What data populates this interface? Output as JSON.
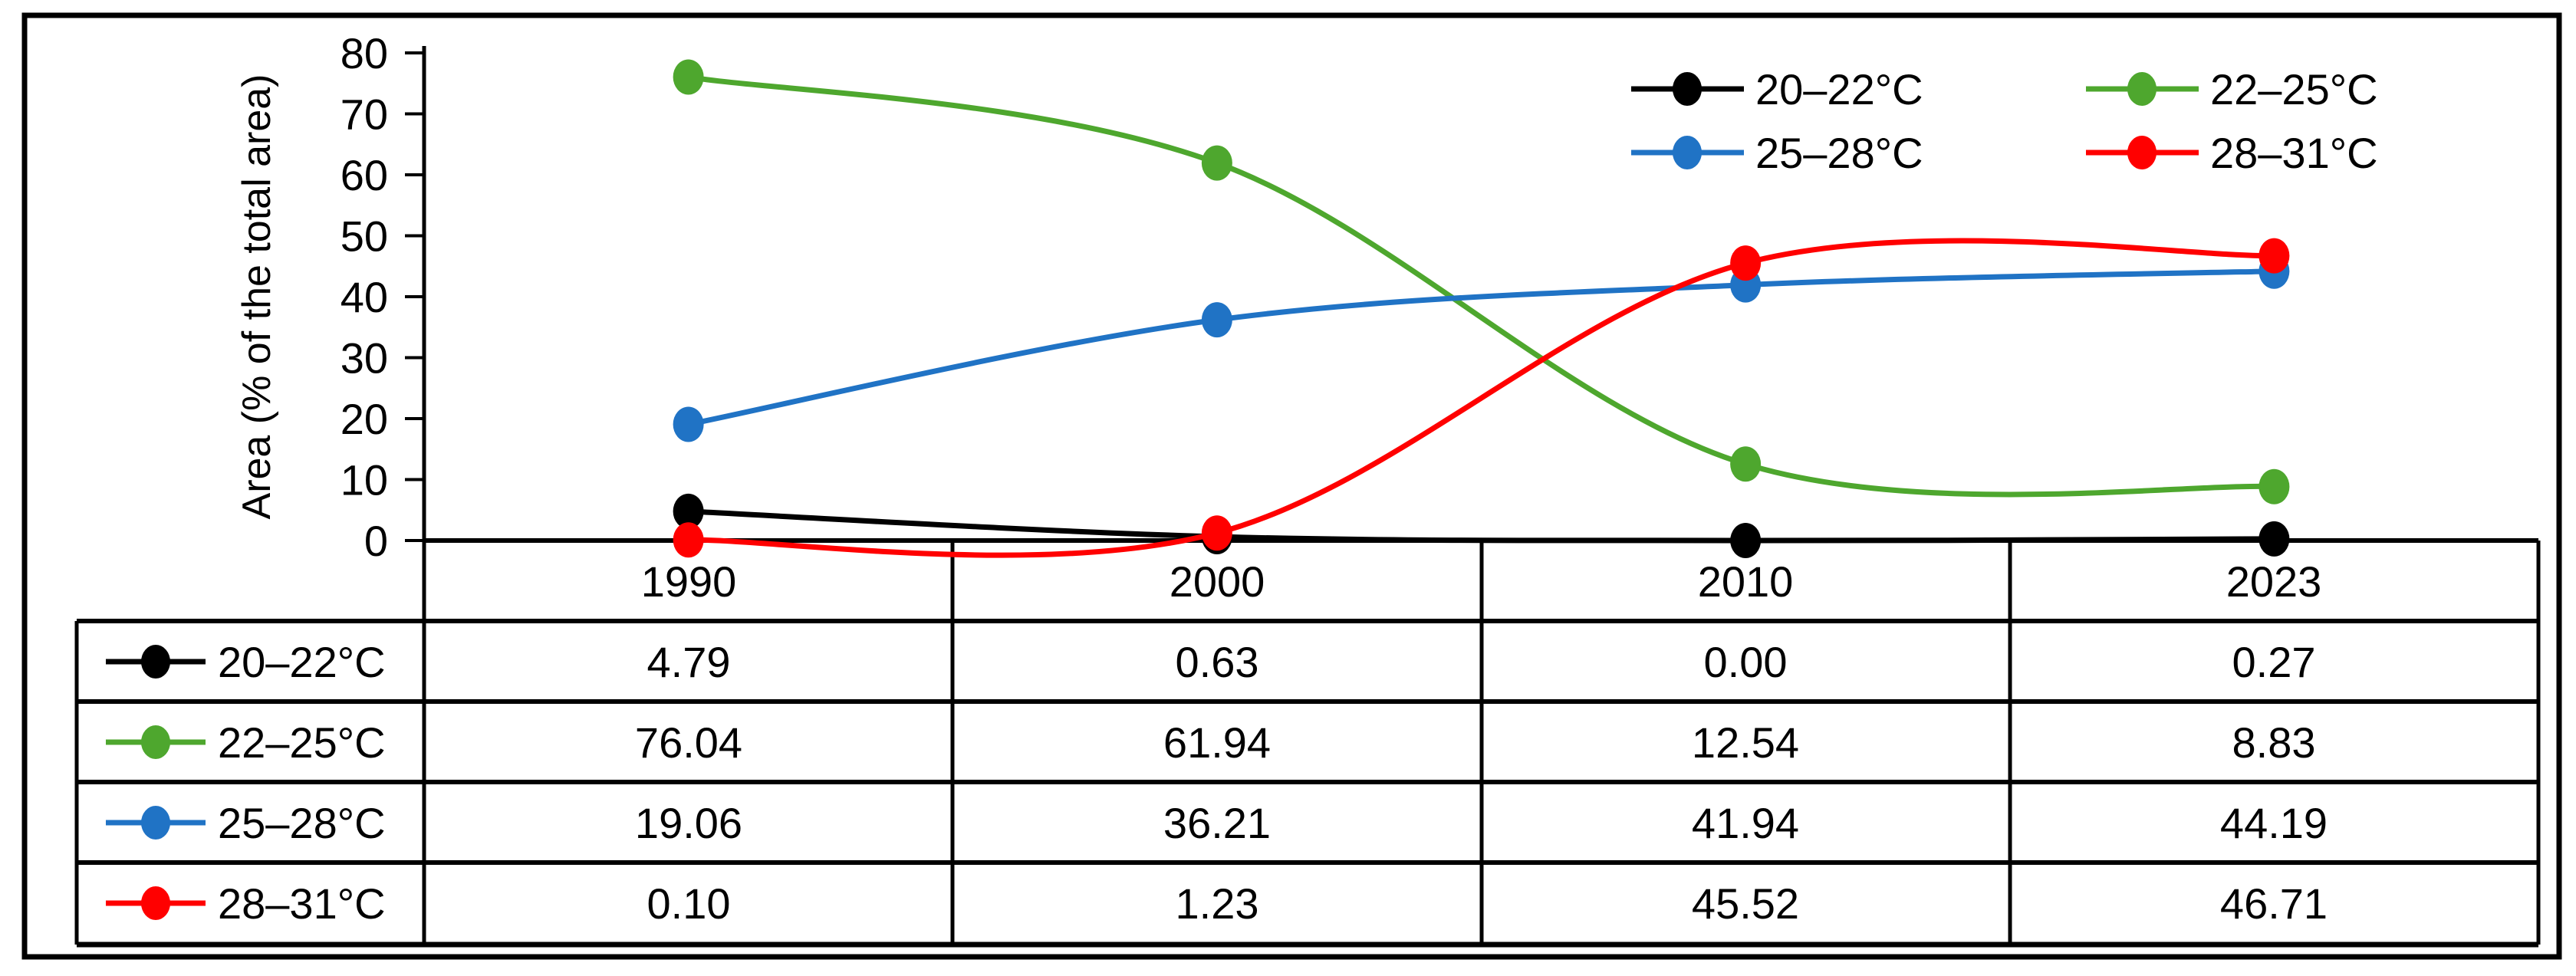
{
  "chart_data": {
    "type": "line",
    "line_style": "smooth",
    "marker": "circle",
    "categories": [
      "1990",
      "2000",
      "2010",
      "2023"
    ],
    "series": [
      {
        "name": "20–22°C",
        "color": "#000000",
        "values": [
          4.79,
          0.63,
          0.0,
          0.27
        ]
      },
      {
        "name": "22–25°C",
        "color": "#4EA72E",
        "values": [
          76.04,
          61.94,
          12.54,
          8.83
        ]
      },
      {
        "name": "25–28°C",
        "color": "#2073C5",
        "values": [
          19.06,
          36.21,
          41.94,
          44.19
        ]
      },
      {
        "name": "28–31°C",
        "color": "#FF0000",
        "values": [
          0.1,
          1.23,
          45.52,
          46.71
        ]
      }
    ],
    "title": "",
    "xlabel": "",
    "ylabel": "Area (% of the total area)",
    "ylim": [
      0,
      80
    ],
    "y_tick_step": 10,
    "y_ticks": [
      "0",
      "10",
      "20",
      "30",
      "40",
      "50",
      "60",
      "70",
      "80"
    ],
    "grid": false,
    "legend_position": "top-right-two-columns",
    "data_table_shown": true
  },
  "y_axis": {
    "title": "Area (% of the total area)"
  },
  "table": {
    "header": [
      "1990",
      "2000",
      "2010",
      "2023"
    ],
    "rows": [
      {
        "label": "20–22°C",
        "values": [
          "4.79",
          "0.63",
          "0.00",
          "0.27"
        ]
      },
      {
        "label": "22–25°C",
        "values": [
          "76.04",
          "61.94",
          "12.54",
          "8.83"
        ]
      },
      {
        "label": "25–28°C",
        "values": [
          "19.06",
          "36.21",
          "41.94",
          "44.19"
        ]
      },
      {
        "label": "28–31°C",
        "values": [
          "0.10",
          "1.23",
          "45.52",
          "46.71"
        ]
      }
    ]
  },
  "colors": {
    "series_black": "#000000",
    "series_green": "#4EA72E",
    "series_blue": "#2073C5",
    "series_red": "#FF0000",
    "axis": "#000000",
    "background": "#FFFFFF"
  }
}
